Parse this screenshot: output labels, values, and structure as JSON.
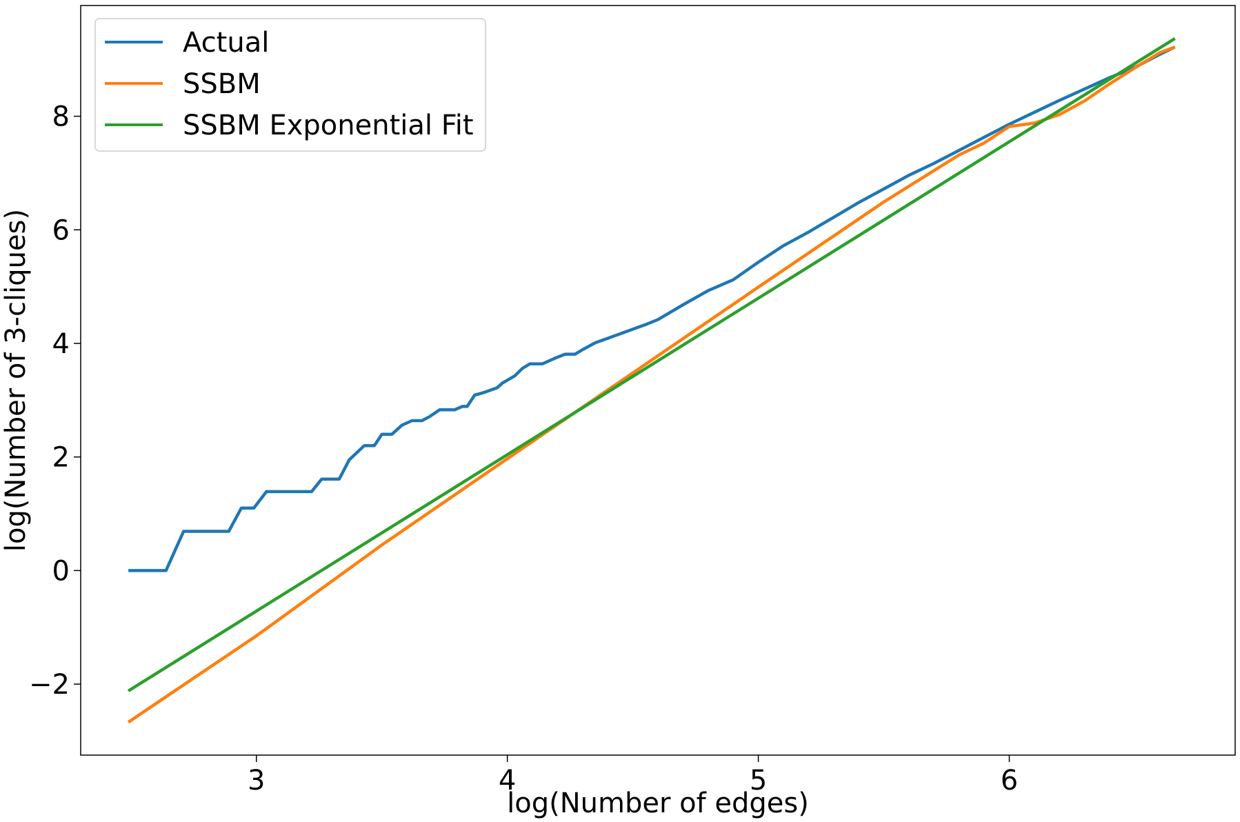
{
  "chart_data": {
    "type": "line",
    "xlabel": "log(Number of edges)",
    "ylabel": "log(Number of 3-cliques)",
    "xlim": [
      2.3,
      6.9
    ],
    "ylim": [
      -3.25,
      9.95
    ],
    "xticks": [
      3,
      4,
      5,
      6
    ],
    "yticks": [
      -2,
      0,
      2,
      4,
      6,
      8
    ],
    "grid": false,
    "legend_position": "top-left",
    "series": [
      {
        "name": "Actual",
        "color": "#1f77b4",
        "x": [
          2.49,
          2.64,
          2.71,
          2.89,
          2.94,
          2.99,
          3.04,
          3.22,
          3.26,
          3.33,
          3.37,
          3.43,
          3.47,
          3.5,
          3.54,
          3.58,
          3.62,
          3.66,
          3.69,
          3.73,
          3.79,
          3.82,
          3.84,
          3.87,
          3.91,
          3.96,
          3.98,
          4.03,
          4.06,
          4.09,
          4.14,
          4.19,
          4.23,
          4.27,
          4.3,
          4.35,
          4.4,
          4.45,
          4.5,
          4.55,
          4.6,
          4.7,
          4.8,
          4.9,
          5.0,
          5.1,
          5.2,
          5.3,
          5.4,
          5.5,
          5.6,
          5.7,
          5.8,
          5.9,
          6.0,
          6.1,
          6.2,
          6.3,
          6.4,
          6.5,
          6.6,
          6.66
        ],
        "values": [
          0.0,
          0.0,
          0.69,
          0.69,
          1.1,
          1.1,
          1.39,
          1.39,
          1.61,
          1.61,
          1.95,
          2.2,
          2.2,
          2.4,
          2.4,
          2.56,
          2.64,
          2.64,
          2.71,
          2.83,
          2.83,
          2.89,
          2.89,
          3.09,
          3.14,
          3.22,
          3.3,
          3.43,
          3.56,
          3.64,
          3.64,
          3.74,
          3.81,
          3.81,
          3.89,
          4.01,
          4.09,
          4.17,
          4.25,
          4.33,
          4.42,
          4.68,
          4.93,
          5.12,
          5.43,
          5.72,
          5.96,
          6.22,
          6.48,
          6.72,
          6.96,
          7.17,
          7.4,
          7.63,
          7.86,
          8.07,
          8.28,
          8.48,
          8.68,
          8.86,
          9.09,
          9.22
        ]
      },
      {
        "name": "SSBM",
        "color": "#ff7f0e",
        "x": [
          2.49,
          3.0,
          3.5,
          4.0,
          4.5,
          5.0,
          5.5,
          5.8,
          5.9,
          6.0,
          6.1,
          6.2,
          6.3,
          6.4,
          6.5,
          6.6,
          6.66
        ],
        "values": [
          -2.67,
          -1.15,
          0.45,
          1.97,
          3.48,
          4.99,
          6.49,
          7.32,
          7.53,
          7.82,
          7.88,
          8.03,
          8.27,
          8.57,
          8.85,
          9.12,
          9.22
        ]
      },
      {
        "name": "SSBM Exponential Fit",
        "color": "#2ca02c",
        "x": [
          2.49,
          6.66
        ],
        "values": [
          -2.12,
          9.37
        ]
      }
    ]
  }
}
